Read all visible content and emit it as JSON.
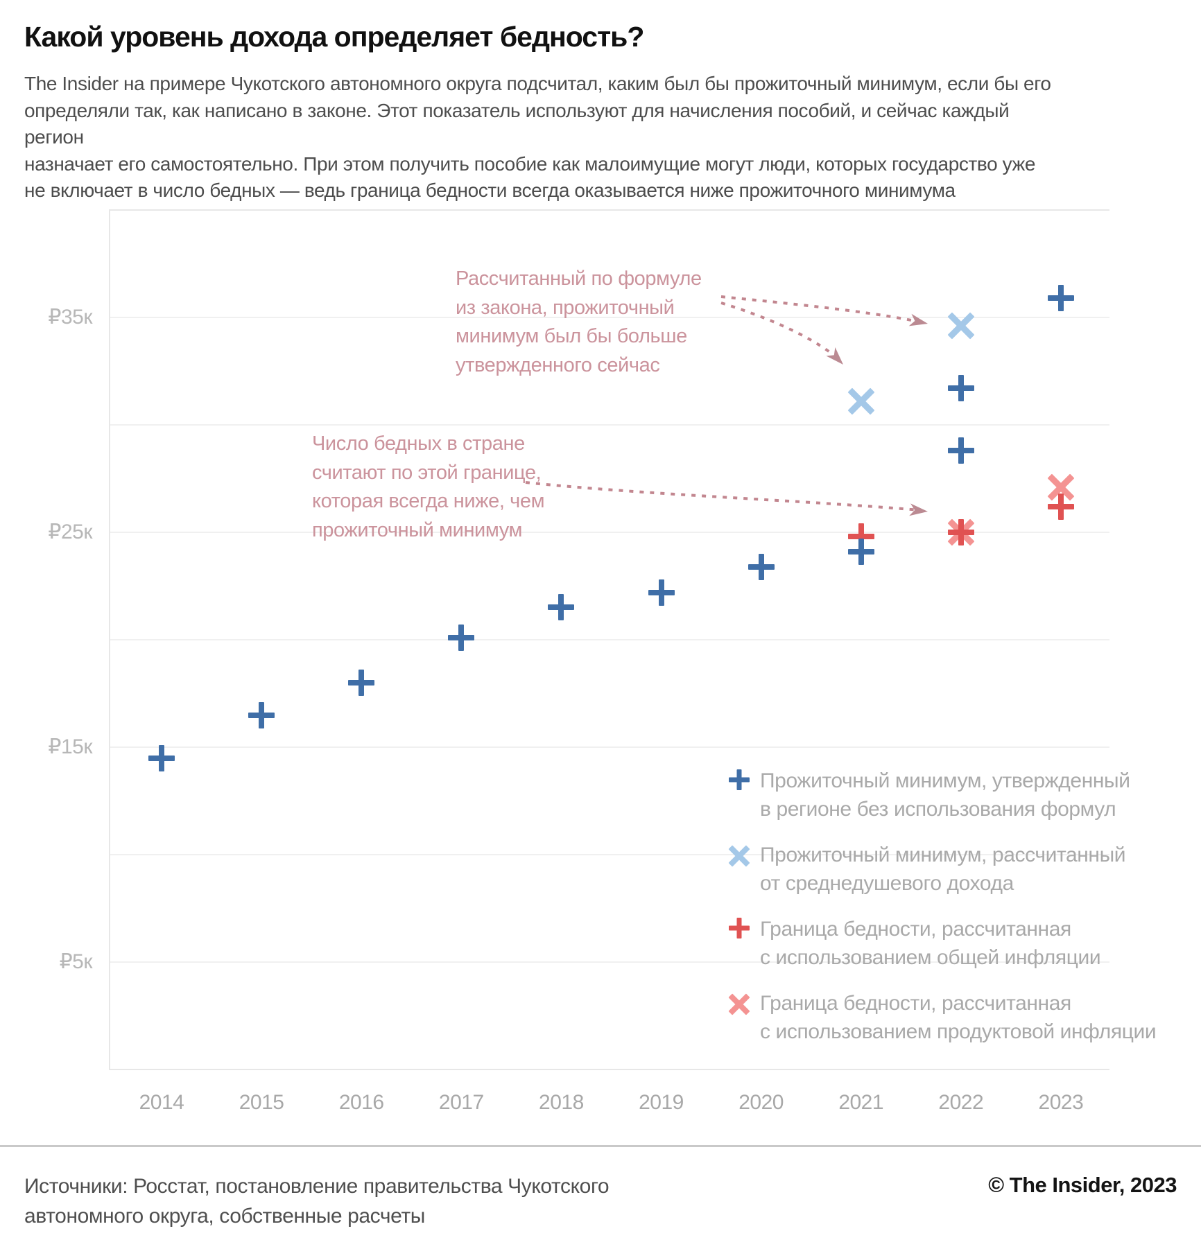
{
  "header": {
    "title": "Какой уровень дохода определяет бедность?",
    "subtitle": "The Insider на примере Чукотского автономного округа подсчитал, каким был бы прожиточный минимум, если бы его\nопределяли так, как написано в законе. Этот показатель используют для начисления пособий, и сейчас каждый регион\nназначает его самостоятельно. При этом получить пособие как малоимущие могут люди, которых государство уже\nне включает в число бедных — ведь граница бедности всегда оказывается ниже прожиточного минимума"
  },
  "chart_data": {
    "type": "scatter",
    "unit": "thousand rubles per month",
    "ylim": [
      0,
      40
    ],
    "grid_step": 5,
    "grid": true,
    "legend_position": "bottom-right-inside",
    "y_ticks": [
      {
        "v": 35,
        "label": "₽35к"
      },
      {
        "v": 25,
        "label": "₽25к"
      },
      {
        "v": 15,
        "label": "₽15к"
      },
      {
        "v": 5,
        "label": "₽5к"
      }
    ],
    "x_ticks": [
      "2014",
      "2015",
      "2016",
      "2017",
      "2018",
      "2019",
      "2020",
      "2021",
      "2022",
      "2023"
    ],
    "series": [
      {
        "name": "approved-minimum",
        "label": "Прожиточный минимум, утвержденный\nв регионе без использования формул",
        "marker": "plus",
        "color": "#3f6ea7",
        "points": [
          [
            2014,
            14.5
          ],
          [
            2015,
            16.5
          ],
          [
            2016,
            18.0
          ],
          [
            2017,
            20.1
          ],
          [
            2018,
            21.5
          ],
          [
            2019,
            22.2
          ],
          [
            2020,
            23.4
          ],
          [
            2021,
            24.1
          ],
          [
            2022,
            28.8
          ],
          [
            2022,
            31.7
          ],
          [
            2023,
            35.9
          ]
        ]
      },
      {
        "name": "calculated-minimum",
        "label": "Прожиточный минимум, рассчитанный\nот среднедушевого дохода",
        "marker": "x",
        "color": "#a4c8e8",
        "points": [
          [
            2021,
            31.1
          ],
          [
            2022,
            34.6
          ]
        ]
      },
      {
        "name": "poverty-line-common-inflation",
        "label": "Граница бедности, рассчитанная\nс использованием общей инфляции",
        "marker": "plus",
        "color": "#e05252",
        "points": [
          [
            2021,
            24.8
          ],
          [
            2022,
            25.0
          ],
          [
            2023,
            26.2
          ]
        ]
      },
      {
        "name": "poverty-line-food-inflation",
        "label": "Граница бедности, рассчитанная\nс использованием продуктовой инфляции",
        "marker": "x",
        "color": "#f49392",
        "points": [
          [
            2022,
            25.0
          ],
          [
            2023,
            27.1
          ]
        ]
      }
    ]
  },
  "annotations": [
    {
      "text": "Рассчитанный по формуле\nиз закона, прожиточный\nминимум был бы больше\nутвержденного сейчас"
    },
    {
      "text": "Число бедных в стране\nсчитают по этой границе,\nкоторая всегда ниже, чем\nпрожиточный минимум"
    }
  ],
  "colors": {
    "annotation": "#cb939c",
    "arrow": "#c2868f",
    "grid": "#f0f0f0",
    "axis_text": "#a8a8a8"
  },
  "footer": {
    "sources": "Источники: Росстат, постановление правительства Чукотского\nавтономного округа, собственные расчеты",
    "credit": "© The Insider, 2023"
  }
}
